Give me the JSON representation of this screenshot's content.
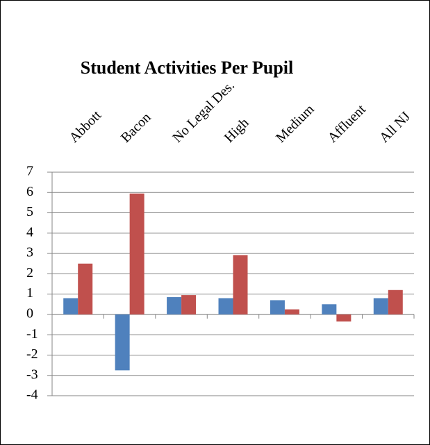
{
  "chart_data": {
    "type": "bar",
    "title": "Student Activities Per Pupil",
    "categories": [
      "Abbott",
      "Bacon",
      "No Legal Des.",
      "High",
      "Medium",
      "Affluent",
      "All NJ"
    ],
    "series": [
      {
        "color": "#4f81bd",
        "values": [
          0.8,
          -2.75,
          0.85,
          0.8,
          0.7,
          0.5,
          0.8
        ]
      },
      {
        "color": "#c0504d",
        "values": [
          2.5,
          5.95,
          0.95,
          2.92,
          0.25,
          -0.35,
          1.2
        ]
      }
    ],
    "ylim": [
      -4,
      7
    ],
    "yticks": [
      7,
      6,
      5,
      4,
      3,
      2,
      1,
      0,
      -1,
      -2,
      -3,
      -4
    ],
    "grid": true
  }
}
